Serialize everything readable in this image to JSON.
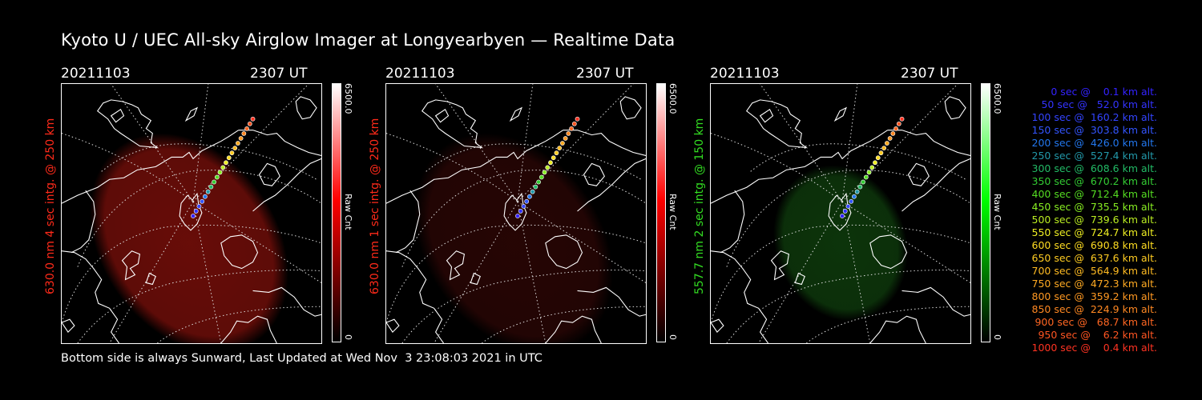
{
  "title": "Kyoto U / UEC All-sky Airglow Imager at Longyearbyen — Realtime Data",
  "footer": "Bottom side is always Sunward, Last Updated at Wed Nov  3 23:08:03 2021 in UTC",
  "panels": [
    {
      "date": "20211103",
      "time": "2307 UT",
      "ylabel": "630.0 nm 4 sec intg. @ 250 km",
      "label_color": "#ff2a1a",
      "cb_max": "6500.0",
      "cb_min": "0",
      "cb_label": "Raw Cnt",
      "cb_color": "#ff0000",
      "glow_color": "#7a0f0a",
      "glow_opacity": 0.85,
      "glow": "large"
    },
    {
      "date": "20211103",
      "time": "2307 UT",
      "ylabel": "630.0 nm 1 sec intg. @ 250 km",
      "label_color": "#ff2a1a",
      "cb_max": "6500.0",
      "cb_min": "0",
      "cb_label": "Raw Cnt",
      "cb_color": "#ff0000",
      "glow_color": "#2a0605",
      "glow_opacity": 0.9,
      "glow": "large"
    },
    {
      "date": "20211103",
      "time": "2307 UT",
      "ylabel": "557.7 nm 2 sec intg. @ 150 km",
      "label_color": "#33dd22",
      "cb_max": "6500.0",
      "cb_min": "0",
      "cb_label": "Raw Cnt",
      "cb_color": "#00ff00",
      "glow_color": "#0e3a0c",
      "glow_opacity": 0.9,
      "glow": "small"
    }
  ],
  "legend": [
    {
      "text": "0 sec @    0.1 km alt.",
      "color": "#3322ff"
    },
    {
      "text": "50 sec @   52.0 km alt.",
      "color": "#3333ff"
    },
    {
      "text": "100 sec @  160.2 km alt.",
      "color": "#3344ff"
    },
    {
      "text": "150 sec @  303.8 km alt.",
      "color": "#3355ff"
    },
    {
      "text": "200 sec @  426.0 km alt.",
      "color": "#2277ee"
    },
    {
      "text": "250 sec @  527.4 km alt.",
      "color": "#2299aa"
    },
    {
      "text": "300 sec @  608.6 km alt.",
      "color": "#22bb66"
    },
    {
      "text": "350 sec @  670.2 km alt.",
      "color": "#33cc33"
    },
    {
      "text": "400 sec @  712.4 km alt.",
      "color": "#55dd22"
    },
    {
      "text": "450 sec @  735.5 km alt.",
      "color": "#88ee22"
    },
    {
      "text": "500 sec @  739.6 km alt.",
      "color": "#bbee22"
    },
    {
      "text": "550 sec @  724.7 km alt.",
      "color": "#eeee22"
    },
    {
      "text": "600 sec @  690.8 km alt.",
      "color": "#ffdd22"
    },
    {
      "text": "650 sec @  637.6 km alt.",
      "color": "#ffcc22"
    },
    {
      "text": "700 sec @  564.9 km alt.",
      "color": "#ffbb22"
    },
    {
      "text": "750 sec @  472.3 km alt.",
      "color": "#ffaa22"
    },
    {
      "text": "800 sec @  359.2 km alt.",
      "color": "#ff9922"
    },
    {
      "text": "850 sec @  224.9 km alt.",
      "color": "#ff8822"
    },
    {
      "text": "900 sec @   68.7 km alt.",
      "color": "#ff6622"
    },
    {
      "text": "950 sec @    6.2 km alt.",
      "color": "#ff5522"
    },
    {
      "text": "1000 sec @    0.4 km alt.",
      "color": "#ff3322"
    }
  ]
}
